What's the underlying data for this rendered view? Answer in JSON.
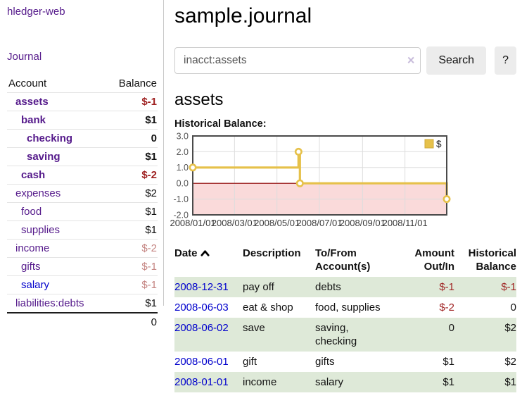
{
  "app": {
    "title": "hledger-web"
  },
  "colors": {
    "accent_purple": "#551a8b",
    "link_blue": "#0000cc",
    "negative": "#9e1f1f",
    "negative_soft": "#c48481",
    "row_green": "#dee9d8",
    "chart_line_gold": "#e6c14a",
    "chart_negative_region": "#fadada",
    "chart_zero_line": "#8b0000"
  },
  "sidebar": {
    "nav": {
      "journal_label": "Journal"
    },
    "accounts_table": {
      "headers": {
        "account": "Account",
        "balance": "Balance"
      },
      "rows": [
        {
          "account": "assets",
          "balance": "$-1",
          "indent": 1,
          "bold": true,
          "name_color": "purple",
          "bal_color": "neg"
        },
        {
          "account": "bank",
          "balance": "$1",
          "indent": 2,
          "bold": true,
          "name_color": "purple",
          "bal_color": "black"
        },
        {
          "account": "checking",
          "balance": "0",
          "indent": 3,
          "bold": true,
          "name_color": "purple",
          "bal_color": "black"
        },
        {
          "account": "saving",
          "balance": "$1",
          "indent": 3,
          "bold": true,
          "name_color": "purple",
          "bal_color": "black"
        },
        {
          "account": "cash",
          "balance": "$-2",
          "indent": 2,
          "bold": true,
          "name_color": "purple",
          "bal_color": "neg"
        },
        {
          "account": "expenses",
          "balance": "$2",
          "indent": 1,
          "bold": false,
          "name_color": "purple",
          "bal_color": "black"
        },
        {
          "account": "food",
          "balance": "$1",
          "indent": 2,
          "bold": false,
          "name_color": "purple",
          "bal_color": "black"
        },
        {
          "account": "supplies",
          "balance": "$1",
          "indent": 2,
          "bold": false,
          "name_color": "purple",
          "bal_color": "black"
        },
        {
          "account": "income",
          "balance": "$-2",
          "indent": 1,
          "bold": false,
          "name_color": "purple",
          "bal_color": "softneg"
        },
        {
          "account": "gifts",
          "balance": "$-1",
          "indent": 2,
          "bold": false,
          "name_color": "purple",
          "bal_color": "softneg"
        },
        {
          "account": "salary",
          "balance": "$-1",
          "indent": 2,
          "bold": false,
          "name_color": "blue",
          "bal_color": "softneg"
        },
        {
          "account": "liabilities:debts",
          "balance": "$1",
          "indent": 1,
          "bold": false,
          "name_color": "purple",
          "bal_color": "black"
        }
      ],
      "total": "0"
    }
  },
  "main": {
    "title": "sample.journal",
    "search": {
      "value": "inacct:assets",
      "clear_icon": "×",
      "button_label": "Search",
      "help_label": "?"
    },
    "section_title": "assets",
    "chart_heading": "Historical Balance:"
  },
  "chart_data": {
    "type": "line",
    "title": "Historical Balance:",
    "step": "after",
    "series": [
      {
        "name": "$",
        "points": [
          {
            "date": "2008-01-01",
            "value": 1
          },
          {
            "date": "2008-06-01",
            "value": 2
          },
          {
            "date": "2008-06-03",
            "value": 0
          },
          {
            "date": "2008-12-31",
            "value": -1
          }
        ]
      }
    ],
    "x_range": [
      "2008-01-01",
      "2008-12-31"
    ],
    "x_ticks": [
      {
        "date": "2008-01-01",
        "label": "2008/01/01"
      },
      {
        "date": "2008-03-01",
        "label": "2008/03/01"
      },
      {
        "date": "2008-05-01",
        "label": "2008/05/01"
      },
      {
        "date": "2008-07-01",
        "label": "2008/07/01"
      },
      {
        "date": "2008-09-01",
        "label": "2008/09/01"
      },
      {
        "date": "2008-11-01",
        "label": "2008/11/01"
      }
    ],
    "ylim": [
      -2,
      3
    ],
    "y_ticks": [
      3.0,
      2.0,
      1.0,
      0.0,
      -1.0,
      -2.0
    ],
    "grid": true,
    "legend": {
      "label": "$",
      "position": "top-right"
    },
    "negative_region_shaded": true
  },
  "transactions": {
    "headers": {
      "date": "Date",
      "description": "Description",
      "accounts": "To/From Account(s)",
      "amount": "Amount Out/In",
      "balance": "Historical Balance"
    },
    "rows": [
      {
        "date": "2008-12-31",
        "description": "pay off",
        "accounts": "debts",
        "amount": "$-1",
        "amount_neg": true,
        "balance": "$-1",
        "balance_neg": true,
        "green": true
      },
      {
        "date": "2008-06-03",
        "description": "eat & shop",
        "accounts": "food, supplies",
        "amount": "$-2",
        "amount_neg": true,
        "balance": "0",
        "balance_neg": false,
        "green": false
      },
      {
        "date": "2008-06-02",
        "description": "save",
        "accounts": "saving, checking",
        "amount": "0",
        "amount_neg": false,
        "balance": "$2",
        "balance_neg": false,
        "green": true
      },
      {
        "date": "2008-06-01",
        "description": "gift",
        "accounts": "gifts",
        "amount": "$1",
        "amount_neg": false,
        "balance": "$2",
        "balance_neg": false,
        "green": false
      },
      {
        "date": "2008-01-01",
        "description": "income",
        "accounts": "salary",
        "amount": "$1",
        "amount_neg": false,
        "balance": "$1",
        "balance_neg": false,
        "green": true
      }
    ]
  }
}
